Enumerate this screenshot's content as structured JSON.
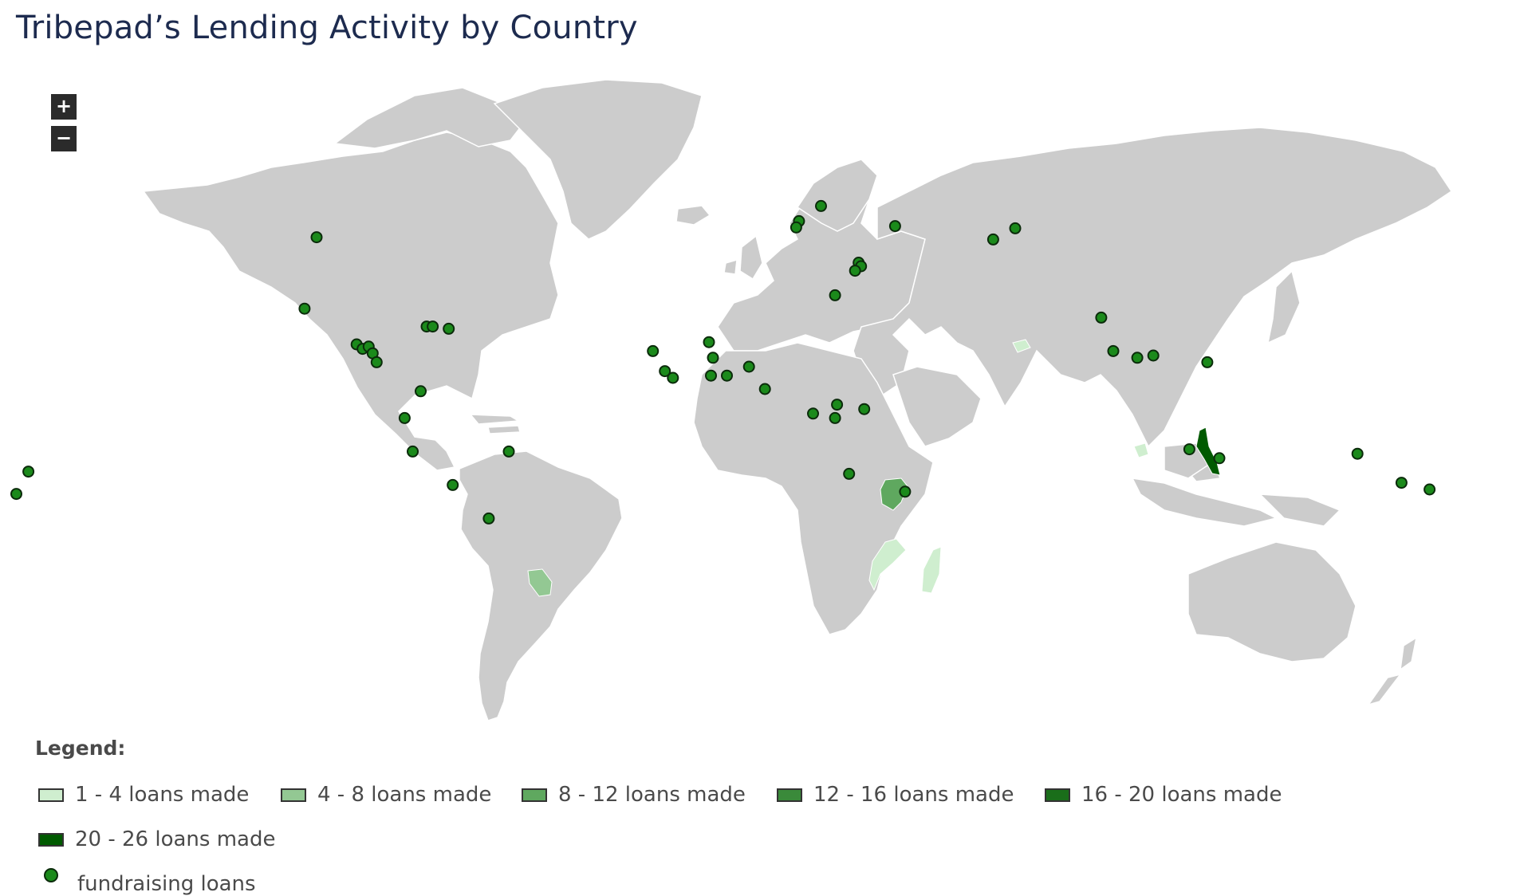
{
  "title": "Tribepad’s Lending Activity by Country",
  "zoom": {
    "in_label": "+",
    "out_label": "−"
  },
  "colors": {
    "land": "#cccccc",
    "border": "#ffffff",
    "marker_fill": "#1b8a1b",
    "marker_stroke": "#0b2b0b"
  },
  "legend": {
    "title": "Legend:",
    "items": [
      {
        "label": "1 - 4 loans made",
        "color": "#cfeecf"
      },
      {
        "label": "4 - 8 loans made",
        "color": "#93c893"
      },
      {
        "label": "8 - 12 loans made",
        "color": "#5fa85f"
      },
      {
        "label": "12 - 16 loans made",
        "color": "#3a8a3a"
      },
      {
        "label": "16 - 20 loans made",
        "color": "#1a6e1a"
      },
      {
        "label": "20 - 26 loans made",
        "color": "#005a00"
      }
    ],
    "marker_label": "fundraising loans"
  },
  "shaded_countries": [
    {
      "name": "Kenya",
      "bucket": "8 - 12 loans made"
    },
    {
      "name": "Mozambique",
      "bucket": "1 - 4 loans made"
    },
    {
      "name": "Madagascar",
      "bucket": "1 - 4 loans made"
    },
    {
      "name": "Paraguay",
      "bucket": "4 - 8 loans made"
    },
    {
      "name": "Philippines",
      "bucket": "20 - 26 loans made"
    },
    {
      "name": "Cambodia",
      "bucket": "1 - 4 loans made"
    },
    {
      "name": "Tajikistan",
      "bucket": "1 - 4 loans made"
    }
  ],
  "markers": [
    {
      "lon": -100,
      "lat": 39
    },
    {
      "lon": -103,
      "lat": 23
    },
    {
      "lon": -90,
      "lat": 15
    },
    {
      "lon": -88.5,
      "lat": 14
    },
    {
      "lon": -87,
      "lat": 14.5
    },
    {
      "lon": -86,
      "lat": 13
    },
    {
      "lon": -85,
      "lat": 11
    },
    {
      "lon": -72.5,
      "lat": 19
    },
    {
      "lon": -71,
      "lat": 19
    },
    {
      "lon": -67,
      "lat": 18.5
    },
    {
      "lon": -74,
      "lat": 4.5
    },
    {
      "lon": -78,
      "lat": -1.5
    },
    {
      "lon": -76,
      "lat": -9
    },
    {
      "lon": -66,
      "lat": -16.5
    },
    {
      "lon": -57,
      "lat": -24
    },
    {
      "lon": -52,
      "lat": -9
    },
    {
      "lon": 20.5,
      "lat": 42.6
    },
    {
      "lon": 19.8,
      "lat": 41.2
    },
    {
      "lon": 26,
      "lat": 46
    },
    {
      "lon": 44.5,
      "lat": 41.5
    },
    {
      "lon": 35.4,
      "lat": 33.3
    },
    {
      "lon": 36,
      "lat": 32.5
    },
    {
      "lon": 34.5,
      "lat": 31.5
    },
    {
      "lon": 29.5,
      "lat": 26
    },
    {
      "lon": 69,
      "lat": 38.5
    },
    {
      "lon": 74.5,
      "lat": 41
    },
    {
      "lon": 96,
      "lat": 21
    },
    {
      "lon": 99,
      "lat": 13.5
    },
    {
      "lon": 105,
      "lat": 12
    },
    {
      "lon": 109,
      "lat": 12.5
    },
    {
      "lon": 122.5,
      "lat": 11
    },
    {
      "lon": 118,
      "lat": -8.5
    },
    {
      "lon": 125.5,
      "lat": -10.5
    },
    {
      "lon": 160,
      "lat": -9.5
    },
    {
      "lon": 171,
      "lat": -16
    },
    {
      "lon": 178,
      "lat": -17.5
    },
    {
      "lon": -175,
      "lat": -18.5
    },
    {
      "lon": -172,
      "lat": -13.5
    },
    {
      "lon": -16,
      "lat": 13.5
    },
    {
      "lon": -13,
      "lat": 9
    },
    {
      "lon": -11,
      "lat": 7.5
    },
    {
      "lon": -2,
      "lat": 15.5
    },
    {
      "lon": -1,
      "lat": 12
    },
    {
      "lon": -1.5,
      "lat": 8
    },
    {
      "lon": 2.5,
      "lat": 8
    },
    {
      "lon": 8,
      "lat": 10
    },
    {
      "lon": 12,
      "lat": 5
    },
    {
      "lon": 24,
      "lat": -0.5
    },
    {
      "lon": 29.5,
      "lat": -1.5
    },
    {
      "lon": 30,
      "lat": 1.5
    },
    {
      "lon": 36.8,
      "lat": 0.5
    },
    {
      "lon": 33,
      "lat": -14
    },
    {
      "lon": 47,
      "lat": -18
    }
  ]
}
